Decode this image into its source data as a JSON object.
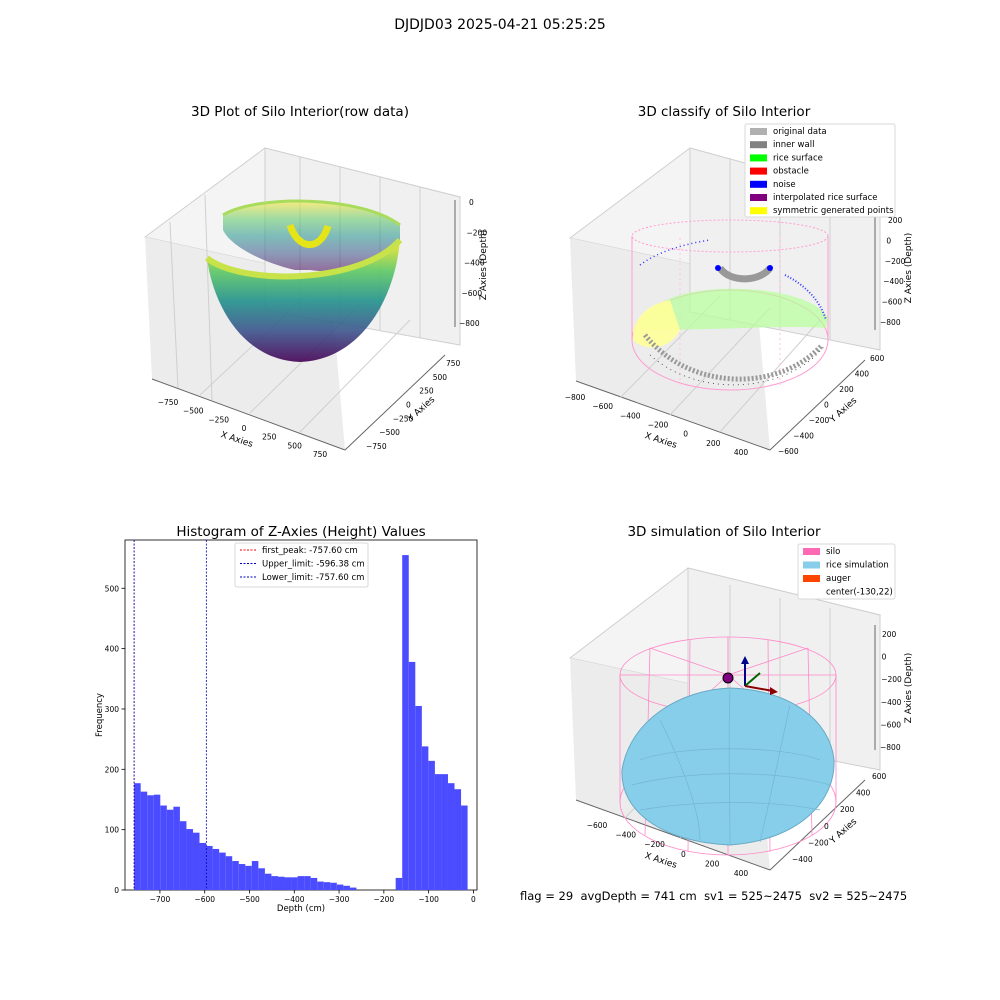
{
  "suptitle": "DJDJD03 2025-04-21 05:25:25",
  "status": {
    "flag": "flag = 29",
    "avg_depth": "avgDepth = 741 cm",
    "sv1": "sv1 = 525~2475",
    "sv2": "sv2 = 525~2475"
  },
  "colors": {
    "histogram_bar": "#4b4bff",
    "first_peak": "#ff0000",
    "limit_lines": "#0000bb",
    "silo": "#ff69b4",
    "rice_simulation": "#87ceeb",
    "auger": "#ff4500",
    "viridis_low": "#440154",
    "viridis_high": "#fde725"
  },
  "chart_data": [
    {
      "type": "scatter3d",
      "title": "3D Plot of Silo Interior(row data)",
      "xlabel": "X Axies",
      "ylabel": "Y Axies",
      "zlabel": "Z Axies (Depth)",
      "xticks": [
        "−750",
        "−500",
        "−250",
        "0",
        "250",
        "500",
        "750"
      ],
      "yticks": [
        "750",
        "500",
        "250",
        "0",
        "−250",
        "−500",
        "−750"
      ],
      "zticks": [
        "0",
        "−200",
        "−400",
        "−600",
        "−800"
      ],
      "colormap": "viridis"
    },
    {
      "type": "scatter3d",
      "title": "3D classify of Silo Interior",
      "xlabel": "X Axies",
      "ylabel": "Y Axies",
      "zlabel": "Z Axies (Depth)",
      "xticks": [
        "−800",
        "−600",
        "−400",
        "−200",
        "0",
        "200",
        "400"
      ],
      "yticks": [
        "600",
        "400",
        "200",
        "0",
        "−200",
        "−400",
        "−600"
      ],
      "zticks": [
        "200",
        "0",
        "−200",
        "−400",
        "−600",
        "−800"
      ],
      "legend_position": "top-right",
      "legend": [
        {
          "label": "original data",
          "color": "#b0b0b0"
        },
        {
          "label": "inner wall",
          "color": "#808080"
        },
        {
          "label": "rice surface",
          "color": "#00ff00"
        },
        {
          "label": "obstacle",
          "color": "#ff0000"
        },
        {
          "label": "noise",
          "color": "#0000ff"
        },
        {
          "label": "interpolated rice surface",
          "color": "#800080"
        },
        {
          "label": "symmetric generated points",
          "color": "#ffff00"
        }
      ]
    },
    {
      "type": "bar",
      "title": "Histogram of Z-Axies (Height) Values",
      "xlabel": "Depth (cm)",
      "ylabel": "Frequency",
      "xlim": [
        -778,
        8
      ],
      "ylim": [
        0,
        580
      ],
      "xticks": [
        {
          "v": -700,
          "label": "−700"
        },
        {
          "v": -600,
          "label": "−600"
        },
        {
          "v": -500,
          "label": "−500"
        },
        {
          "v": -400,
          "label": "−400"
        },
        {
          "v": -300,
          "label": "−300"
        },
        {
          "v": -200,
          "label": "−200"
        },
        {
          "v": -100,
          "label": "−100"
        },
        {
          "v": 0,
          "label": "0"
        }
      ],
      "yticks": [
        {
          "v": 0,
          "label": "0"
        },
        {
          "v": 100,
          "label": "100"
        },
        {
          "v": 200,
          "label": "200"
        },
        {
          "v": 300,
          "label": "300"
        },
        {
          "v": 400,
          "label": "400"
        },
        {
          "v": 500,
          "label": "500"
        }
      ],
      "bin_start": -757.6,
      "bin_width": 14.6,
      "values": [
        177,
        163,
        157,
        158,
        140,
        133,
        138,
        114,
        101,
        95,
        78,
        73,
        68,
        62,
        56,
        48,
        43,
        40,
        48,
        36,
        27,
        23,
        22,
        21,
        21,
        23,
        23,
        20,
        14,
        13,
        12,
        9,
        7,
        4,
        0,
        0,
        0,
        0,
        0,
        0,
        20,
        555,
        378,
        305,
        238,
        214,
        192,
        192,
        177,
        167,
        140
      ],
      "lines": [
        {
          "label": "first_peak: -757.60 cm",
          "x": -757.6,
          "color": "#ff0000"
        },
        {
          "label": "Upper_limit: -596.38 cm",
          "x": -596.38,
          "color": "#0000bb"
        },
        {
          "label": "Lower_limit: -757.60 cm",
          "x": -757.6,
          "color": "#0000bb"
        }
      ],
      "legend_position": "top-center"
    },
    {
      "type": "scatter3d",
      "title": "3D simulation of Silo Interior",
      "xlabel": "X Axies",
      "ylabel": "Y Axies",
      "zlabel": "Z Axies (Depth)",
      "xticks": [
        "−600",
        "−400",
        "−200",
        "0",
        "200",
        "400"
      ],
      "yticks": [
        "600",
        "400",
        "200",
        "0",
        "−200",
        "−400"
      ],
      "zticks": [
        "200",
        "0",
        "−200",
        "−400",
        "−600",
        "−800"
      ],
      "legend_position": "top-right",
      "legend": [
        {
          "label": "silo",
          "color": "#ff69b4"
        },
        {
          "label": "rice simulation",
          "color": "#87ceeb"
        },
        {
          "label": "auger",
          "color": "#ff4500"
        },
        {
          "label": "center(-130,22)",
          "color": "none"
        }
      ]
    }
  ]
}
